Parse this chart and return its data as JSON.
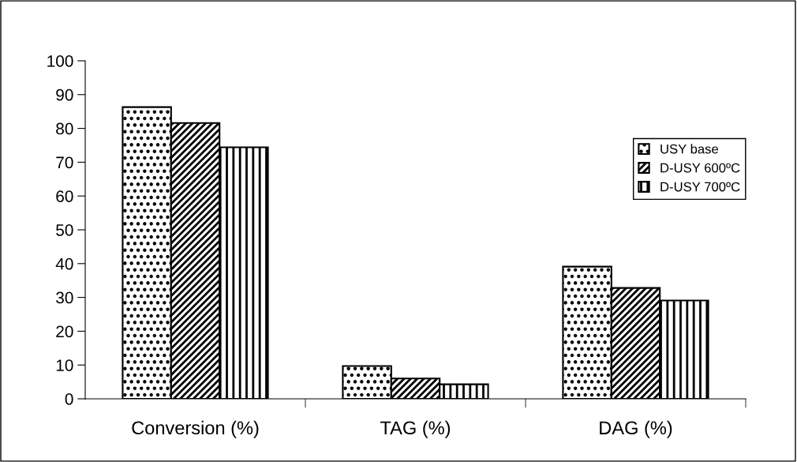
{
  "chart_data": {
    "type": "bar",
    "categories": [
      "Conversion (%)",
      "TAG (%)",
      "DAG (%)"
    ],
    "series": [
      {
        "name": "USY base",
        "color": "#000000",
        "values": [
          86.3,
          9.7,
          39.1
        ]
      },
      {
        "name": "D-USY 600ºC",
        "color": "#000000",
        "values": [
          81.6,
          6.0,
          32.8
        ]
      },
      {
        "name": "D-USY 700ºC",
        "color": "#000000",
        "values": [
          74.4,
          4.3,
          29.1
        ]
      }
    ],
    "ylim": [
      0,
      100
    ],
    "yticks": [
      0,
      10,
      20,
      30,
      40,
      50,
      60,
      70,
      80,
      90,
      100
    ],
    "grid": false,
    "legend": "right"
  }
}
